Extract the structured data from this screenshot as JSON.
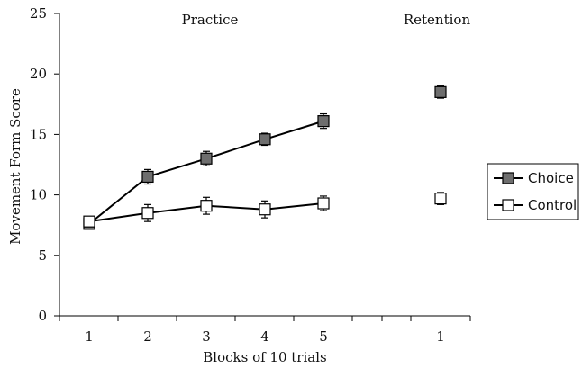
{
  "chart_data": {
    "type": "line",
    "xlabel": "Blocks of 10 trials",
    "ylabel": "Movement Form Score",
    "ylim": [
      0,
      25
    ],
    "yticks": [
      0,
      5,
      10,
      15,
      20,
      25
    ],
    "categories": [
      "1",
      "2",
      "3",
      "4",
      "5",
      "1"
    ],
    "phases": [
      {
        "label": "Practice",
        "categories": [
          0,
          1,
          2,
          3,
          4
        ]
      },
      {
        "label": "Retention",
        "categories": [
          5
        ]
      }
    ],
    "legend_position": "right",
    "grid": false,
    "series": [
      {
        "name": "Choice",
        "marker": "filled-square",
        "color": "#6e6e6e",
        "values": [
          7.6,
          11.5,
          13.0,
          14.6,
          16.1,
          18.5
        ],
        "error": [
          0.4,
          0.6,
          0.6,
          0.5,
          0.6,
          0.5
        ],
        "connected_through": 4
      },
      {
        "name": "Control",
        "marker": "open-square",
        "color": "#ffffff",
        "values": [
          7.8,
          8.5,
          9.1,
          8.8,
          9.3,
          9.7
        ],
        "error": [
          0.4,
          0.7,
          0.7,
          0.7,
          0.6,
          0.5
        ],
        "connected_through": 4
      }
    ]
  }
}
